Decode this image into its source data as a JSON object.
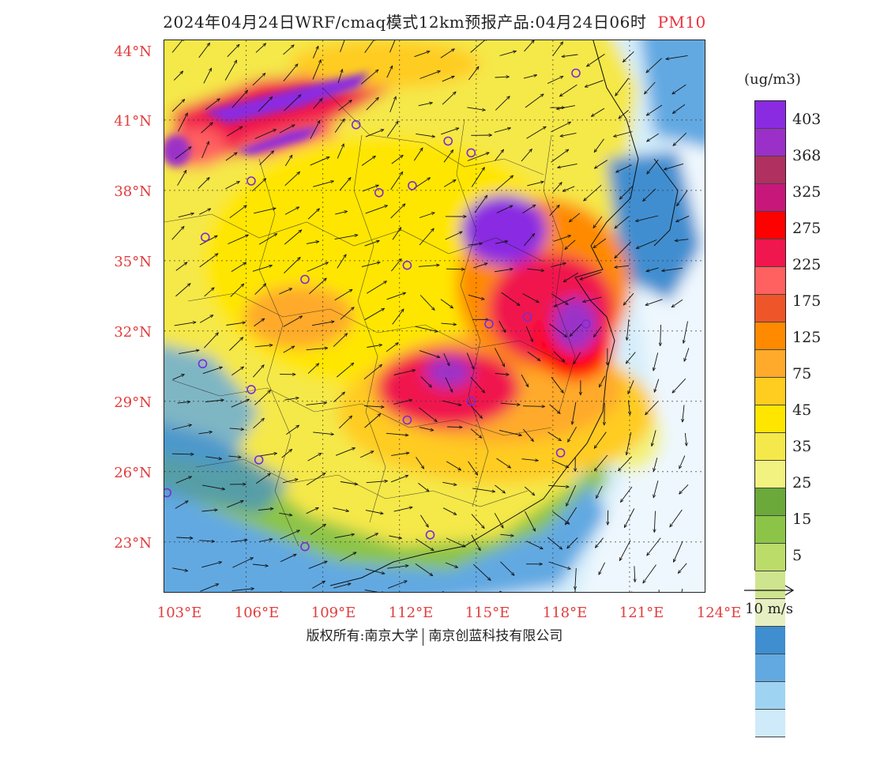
{
  "title": {
    "text": "2024年04月24日WRF/cmaq模式12km预报产品:04月24日06时",
    "pollutant": "PM10"
  },
  "lat_labels": [
    "44°N",
    "41°N",
    "38°N",
    "35°N",
    "32°N",
    "29°N",
    "26°N",
    "23°N"
  ],
  "lon_labels": [
    "103°E",
    "106°E",
    "109°E",
    "112°E",
    "115°E",
    "118°E",
    "121°E",
    "124°E"
  ],
  "legend": {
    "unit": "(ug/m3)",
    "colors": [
      "#8a2be2",
      "#9b30c8",
      "#b03060",
      "#c8177a",
      "#ff0000",
      "#f0174e",
      "#ff6060",
      "#ee5528",
      "#ff8a00",
      "#ffaa2a",
      "#ffcc20",
      "#ffe600",
      "#f5e84a",
      "#f2f280",
      "#6aa93a",
      "#8cc448",
      "#bcdc6a",
      "#cfe48e",
      "#e6efc2",
      "#3f8ed0",
      "#62a9e2",
      "#9fd3f2",
      "#cfeaf8",
      "#ffffff"
    ],
    "labels": [
      "403",
      "368",
      "325",
      "275",
      "225",
      "175",
      "125",
      "75",
      "45",
      "35",
      "25",
      "15",
      "5"
    ]
  },
  "wind_reference": "10 m/s",
  "credit": {
    "left": "版权所有:南京大学",
    "right": "南京创蓝科技有限公司"
  },
  "map": {
    "lon_range": [
      102.8,
      124
    ],
    "lat_range": [
      20.8,
      44.4
    ],
    "stations": [
      [
        118.9,
        43.0
      ],
      [
        110.3,
        40.8
      ],
      [
        113.9,
        40.1
      ],
      [
        114.8,
        39.6
      ],
      [
        106.2,
        38.4
      ],
      [
        111.2,
        37.9
      ],
      [
        112.5,
        38.2
      ],
      [
        104.4,
        36.0
      ],
      [
        112.3,
        34.8
      ],
      [
        108.3,
        34.2
      ],
      [
        115.5,
        32.3
      ],
      [
        117.0,
        32.6
      ],
      [
        119.3,
        32.3
      ],
      [
        104.3,
        30.6
      ],
      [
        106.2,
        29.5
      ],
      [
        112.3,
        28.2
      ],
      [
        114.8,
        29.0
      ],
      [
        106.5,
        26.5
      ],
      [
        118.3,
        26.8
      ],
      [
        102.9,
        25.1
      ],
      [
        108.3,
        22.8
      ],
      [
        113.2,
        23.3
      ]
    ]
  }
}
